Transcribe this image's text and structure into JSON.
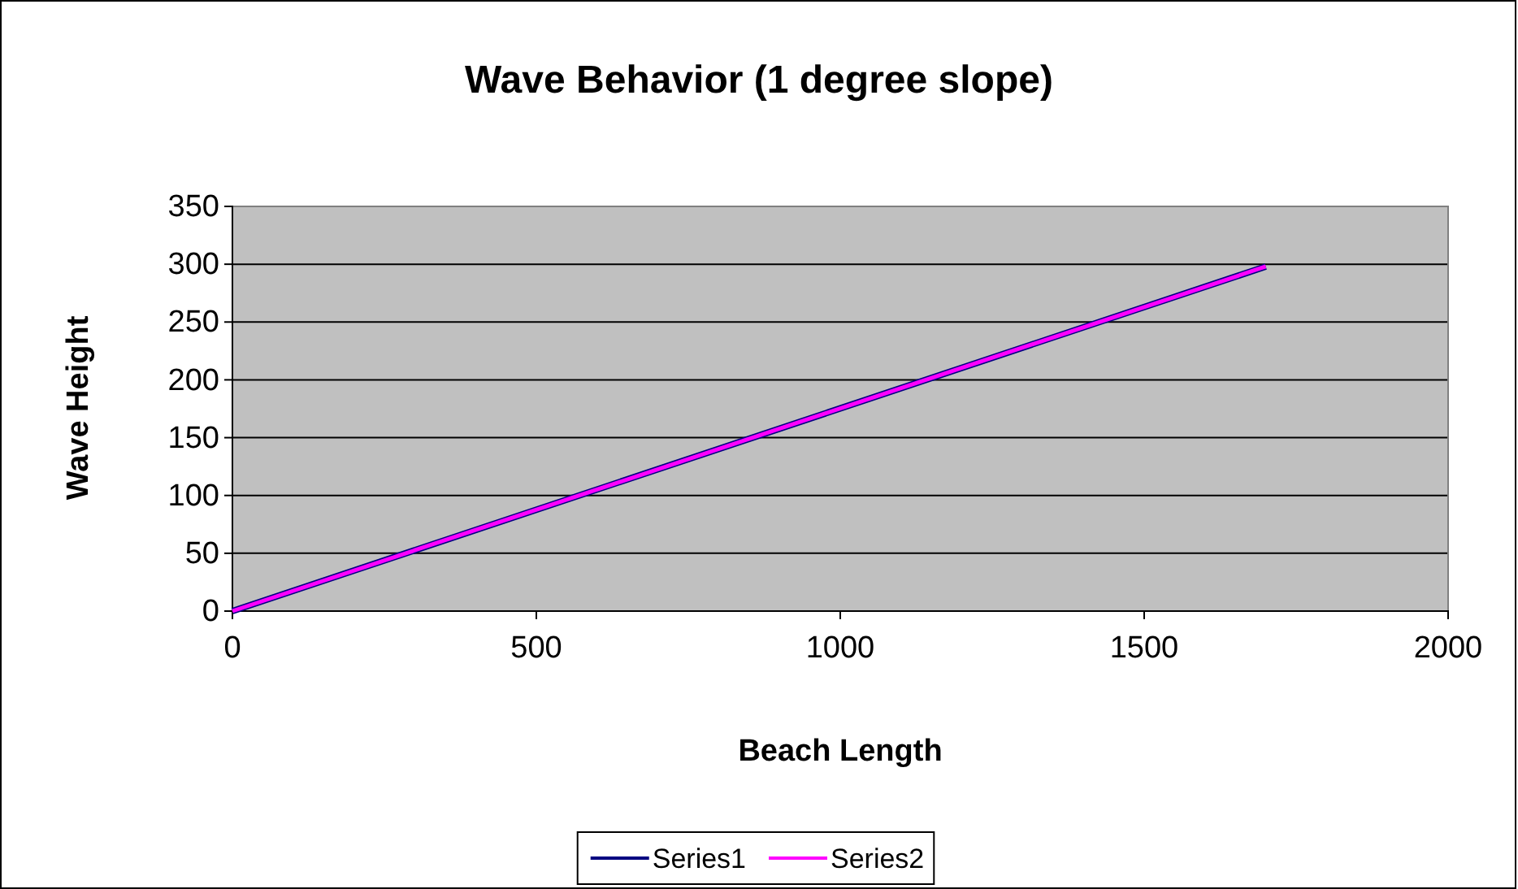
{
  "chart_data": {
    "type": "line",
    "title": "Wave Behavior (1 degree slope)",
    "xlabel": "Beach Length",
    "ylabel": "Wave Height",
    "x": [
      0,
      1700
    ],
    "series": [
      {
        "name": "Series1",
        "color": "#000080",
        "values": [
          0,
          298
        ]
      },
      {
        "name": "Series2",
        "color": "#ff00ff",
        "values": [
          0,
          298
        ]
      }
    ],
    "xlim": [
      0,
      2000
    ],
    "xticks": [
      0,
      500,
      1000,
      1500,
      2000
    ],
    "ylim": [
      0,
      350
    ],
    "yticks": [
      0,
      50,
      100,
      150,
      200,
      250,
      300,
      350
    ],
    "grid": "y",
    "legend": "bottom",
    "marker": "none",
    "line_style": "solid"
  }
}
